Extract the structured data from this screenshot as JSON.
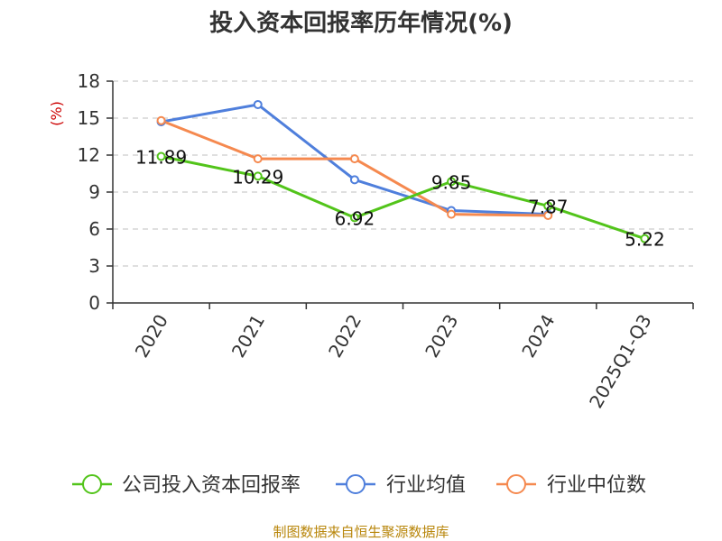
{
  "chart_data": {
    "type": "line",
    "title": "投入资本回报率历年情况(%)",
    "ylabel": "(%)",
    "xlabel": "",
    "categories": [
      "2020",
      "2021",
      "2022",
      "2023",
      "2024",
      "2025Q1-Q3"
    ],
    "ylim": [
      0,
      18
    ],
    "yticks": [
      0,
      3,
      6,
      9,
      12,
      15,
      18
    ],
    "grid": true,
    "legend_position": "bottom",
    "series": [
      {
        "name": "公司投入资本回报率",
        "color": "#52c41a",
        "values": [
          11.89,
          10.29,
          6.92,
          9.85,
          7.87,
          5.22
        ],
        "labels": [
          "11.89",
          "10.29",
          "6.92",
          "9.85",
          "7.87",
          "5.22"
        ]
      },
      {
        "name": "行业均值",
        "color": "#4f7fdc",
        "values": [
          14.7,
          16.1,
          10.0,
          7.5,
          7.2,
          null
        ]
      },
      {
        "name": "行业中位数",
        "color": "#f5894f",
        "values": [
          14.8,
          11.7,
          11.7,
          7.2,
          7.1,
          null
        ]
      }
    ],
    "source": "制图数据来自恒生聚源数据库"
  }
}
